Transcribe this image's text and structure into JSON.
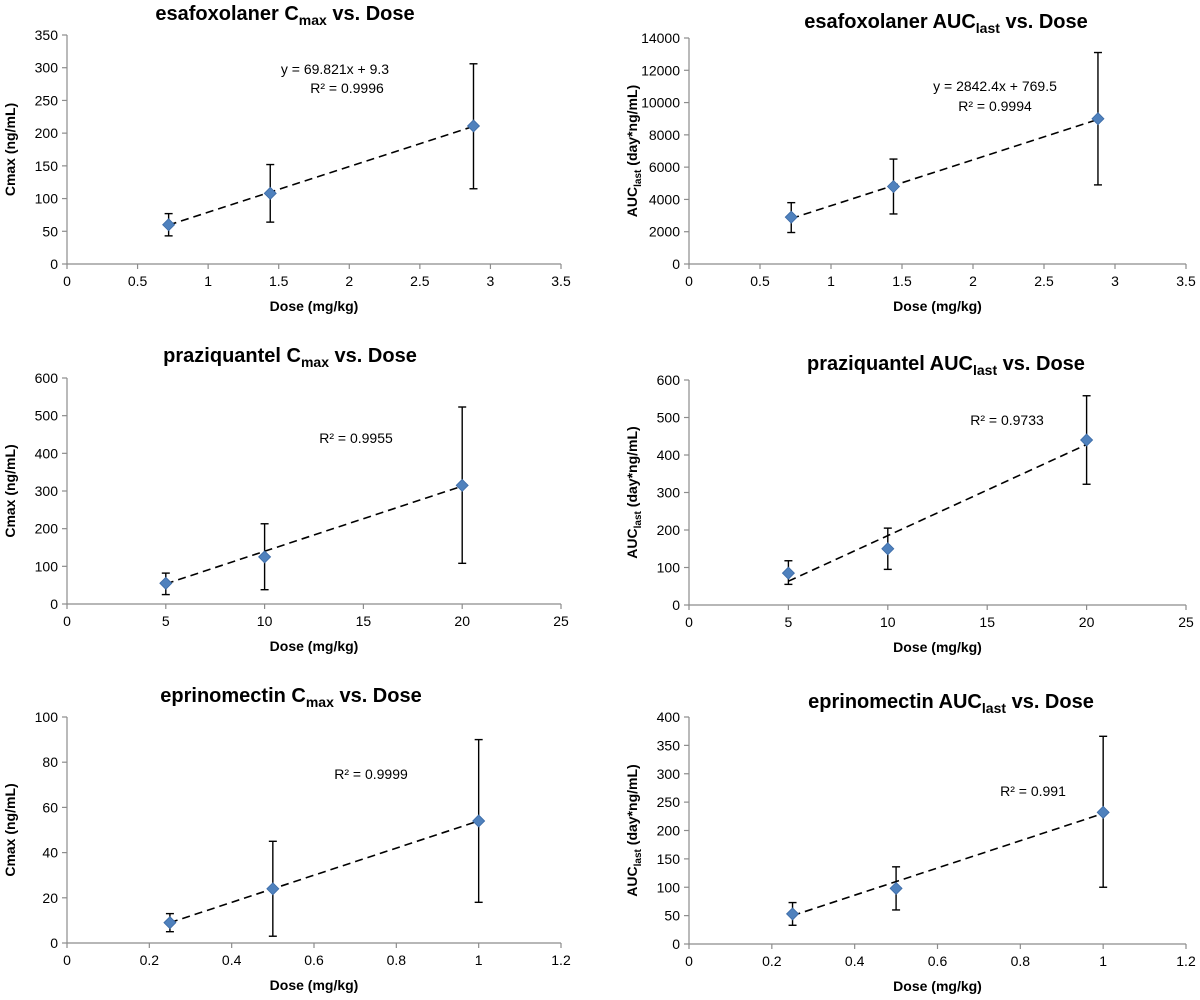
{
  "chart_data": [
    {
      "type": "scatter",
      "title": "esafoxolaner C",
      "title_sub": "max",
      "title_rest": " vs. Dose",
      "xlabel": "Dose (mg/kg)",
      "ylabel": "Cmax (ng/mL)",
      "ylabel_main": "Cmax (ng/mL)",
      "ylabel_sub": "",
      "ylabel_rest": "",
      "xlim": [
        0,
        3.5
      ],
      "ylim": [
        0,
        350
      ],
      "x_ticks": [
        "0",
        "0.5",
        "1",
        "1.5",
        "2",
        "2.5",
        "3",
        "3.5"
      ],
      "y_ticks": [
        "0",
        "50",
        "100",
        "150",
        "200",
        "250",
        "300",
        "350"
      ],
      "x": [
        0.72,
        1.44,
        2.88
      ],
      "y": [
        60,
        108,
        211
      ],
      "err_low": [
        43,
        64,
        115
      ],
      "err_high": [
        77,
        152,
        306
      ],
      "trendline": {
        "slope": 69.821,
        "intercept": 9.3
      },
      "annotations": [
        "y = 69.821x + 9.3",
        "R² = 0.9996"
      ]
    },
    {
      "type": "scatter",
      "title": "esafoxolaner AUC",
      "title_sub": "last",
      "title_rest": " vs. Dose",
      "xlabel": "Dose (mg/kg)",
      "ylabel": "AUClast (day*ng/mL)",
      "ylabel_main": "AUC",
      "ylabel_sub": "last",
      "ylabel_rest": " (day*ng/mL)",
      "xlim": [
        0,
        3.5
      ],
      "ylim": [
        0,
        14000
      ],
      "x_ticks": [
        "0",
        "0.5",
        "1",
        "1.5",
        "2",
        "2.5",
        "3",
        "3.5"
      ],
      "y_ticks": [
        "0",
        "2000",
        "4000",
        "6000",
        "8000",
        "10000",
        "12000",
        "14000"
      ],
      "x": [
        0.72,
        1.44,
        2.88
      ],
      "y": [
        2900,
        4800,
        9000
      ],
      "err_low": [
        1950,
        3100,
        4900
      ],
      "err_high": [
        3800,
        6500,
        13100
      ],
      "trendline": {
        "slope": 2842.4,
        "intercept": 769.5
      },
      "annotations": [
        "y = 2842.4x + 769.5",
        "R² = 0.9994"
      ]
    },
    {
      "type": "scatter",
      "title": "praziquantel C",
      "title_sub": "max",
      "title_rest": " vs. Dose",
      "xlabel": "Dose (mg/kg)",
      "ylabel": "Cmax (ng/mL)",
      "ylabel_main": "Cmax (ng/mL)",
      "ylabel_sub": "",
      "ylabel_rest": "",
      "xlim": [
        0,
        25
      ],
      "ylim": [
        0,
        600
      ],
      "x_ticks": [
        "0",
        "5",
        "10",
        "15",
        "20",
        "25"
      ],
      "y_ticks": [
        "0",
        "100",
        "200",
        "300",
        "400",
        "500",
        "600"
      ],
      "x": [
        5,
        10,
        20
      ],
      "y": [
        55,
        125,
        315
      ],
      "err_low": [
        25,
        38,
        108
      ],
      "err_high": [
        82,
        213,
        523
      ],
      "trendline": {
        "slope": 17.3,
        "intercept": -33
      },
      "annotations": [
        "R² = 0.9955"
      ]
    },
    {
      "type": "scatter",
      "title": "praziquantel AUC",
      "title_sub": "last",
      "title_rest": " vs. Dose",
      "xlabel": "Dose (mg/kg)",
      "ylabel": "AUClast (day*ng/mL)",
      "ylabel_main": "AUC",
      "ylabel_sub": "last",
      "ylabel_rest": " (day*ng/mL)",
      "xlim": [
        0,
        25
      ],
      "ylim": [
        0,
        600
      ],
      "x_ticks": [
        "0",
        "5",
        "10",
        "15",
        "20",
        "25"
      ],
      "y_ticks": [
        "0",
        "100",
        "200",
        "300",
        "400",
        "500",
        "600"
      ],
      "x": [
        5,
        10,
        20
      ],
      "y": [
        85,
        150,
        440
      ],
      "err_low": [
        55,
        95,
        322
      ],
      "err_high": [
        118,
        205,
        558
      ],
      "trendline": {
        "slope": 24.3,
        "intercept": -58
      },
      "annotations": [
        "R² = 0.9733"
      ]
    },
    {
      "type": "scatter",
      "title": "eprinomectin C",
      "title_sub": "max",
      "title_rest": "  vs. Dose",
      "xlabel": "Dose (mg/kg)",
      "ylabel": "Cmax (ng/mL)",
      "ylabel_main": "Cmax (ng/mL)",
      "ylabel_sub": "",
      "ylabel_rest": "",
      "xlim": [
        0,
        1.2
      ],
      "ylim": [
        0,
        100
      ],
      "x_ticks": [
        "0",
        "0.2",
        "0.4",
        "0.6",
        "0.8",
        "1",
        "1.2"
      ],
      "y_ticks": [
        "0",
        "20",
        "40",
        "60",
        "80",
        "100"
      ],
      "x": [
        0.25,
        0.5,
        1.0
      ],
      "y": [
        9,
        24,
        54
      ],
      "err_low": [
        5,
        3,
        18
      ],
      "err_high": [
        13,
        45,
        90
      ],
      "trendline": {
        "slope": 60,
        "intercept": -6
      },
      "annotations": [
        "R² = 0.9999"
      ]
    },
    {
      "type": "scatter",
      "title": "eprinomectin AUC",
      "title_sub": "last",
      "title_rest": " vs. Dose",
      "xlabel": "Dose (mg/kg)",
      "ylabel": "AUClast (day*ng/mL)",
      "ylabel_main": "AUC",
      "ylabel_sub": "last",
      "ylabel_rest": " (day*ng/mL)",
      "xlim": [
        0,
        1.2
      ],
      "ylim": [
        0,
        400
      ],
      "x_ticks": [
        "0",
        "0.2",
        "0.4",
        "0.6",
        "0.8",
        "1",
        "1.2"
      ],
      "y_ticks": [
        "0",
        "50",
        "100",
        "150",
        "200",
        "250",
        "300",
        "350",
        "400"
      ],
      "x": [
        0.25,
        0.5,
        1.0
      ],
      "y": [
        53,
        98,
        232
      ],
      "err_low": [
        33,
        60,
        100
      ],
      "err_high": [
        73,
        136,
        366
      ],
      "trendline": {
        "slope": 240,
        "intercept": -10
      },
      "annotations": [
        "R² = 0.991"
      ]
    }
  ]
}
